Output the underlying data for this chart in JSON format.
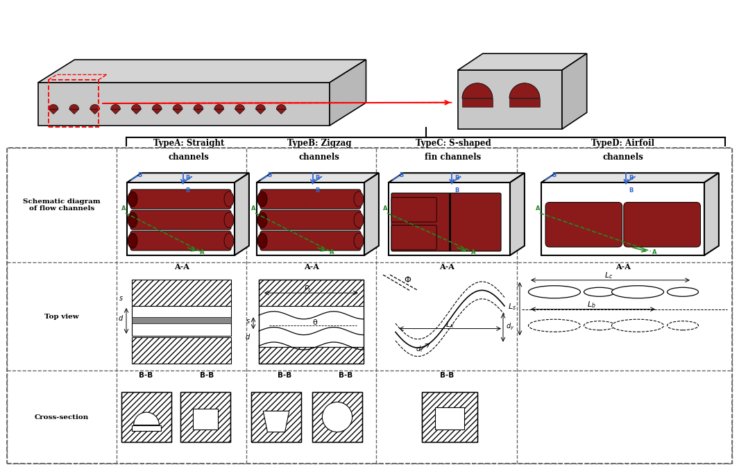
{
  "background": "#ffffff",
  "dashed_color": "#666666",
  "dark_red": "#8B1A1A",
  "dark_red2": "#5a0000",
  "blue_color": "#3366CC",
  "green_color": "#228B22",
  "plate_top": "#d4d4d4",
  "plate_front": "#c8c8c8",
  "plate_side": "#b8b8b8",
  "box_top": "#e0e0e0",
  "box_front": "#d0d0d0",
  "box_side": "#c0c0c0",
  "type_labels": [
    "TypeA: Straight\nchannels",
    "TypeB: Zigzag\nchannels",
    "TypeC: S-shaped\nfin channels",
    "TypeD: Airfoil\nchannels"
  ],
  "row_labels": [
    "Schematic diagram\nof flow channels",
    "Top view",
    "Cross-section"
  ]
}
